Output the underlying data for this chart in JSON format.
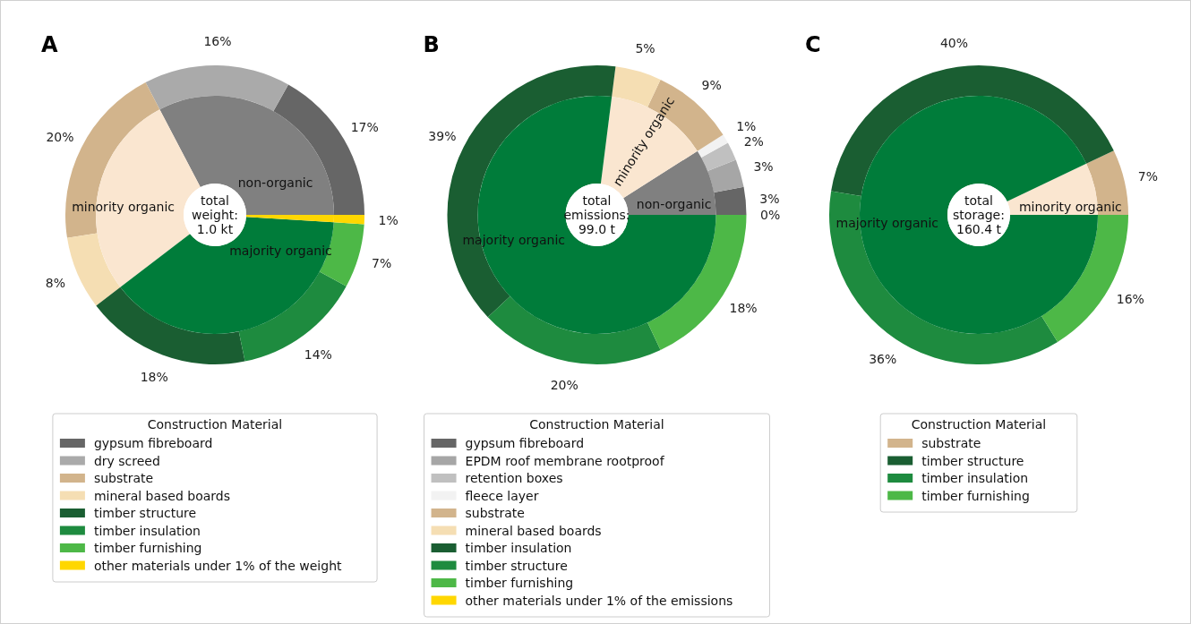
{
  "chart_data": [
    {
      "type": "donut",
      "title": "A",
      "legend_title": "Construction Material",
      "legend": "bottom",
      "categories": [
        "gypsum fibreboard",
        "dry screed",
        "substrate",
        "mineral based boards",
        "timber structure",
        "timber insulation",
        "timber furnishing",
        "other materials under 1% of the weight"
      ],
      "values": [
        17,
        16,
        20,
        8,
        18,
        14,
        7,
        1
      ],
      "value_labels": [
        "17%",
        "16%",
        "20%",
        "8%",
        "18%",
        "14%",
        "7%",
        "1%"
      ],
      "colors": [
        "#666666",
        "#aaaaaa",
        "#d2b48c",
        "#f5deb3",
        "#1a5e32",
        "#1e8b3f",
        "#4db847",
        "#ffd700"
      ]
    },
    {
      "type": "donut",
      "annotations": [
        "total\nweight:\n1.0 kt"
      ],
      "categories": [
        "non-organic",
        "minority organic",
        "majority organic",
        null
      ],
      "values": [
        33,
        28,
        39,
        1
      ],
      "colors": [
        "#808080",
        "#fae6d0",
        "#007c3a",
        "#ffd700"
      ]
    },
    {
      "type": "donut",
      "title": "B",
      "legend_title": "Construction Material",
      "legend": "bottom",
      "categories": [
        "gypsum fibreboard",
        "EPDM roof membrane rootproof",
        "retention boxes",
        "fleece layer",
        "substrate",
        "mineral based boards",
        "timber insulation",
        "timber structure",
        "timber furnishing",
        "other materials under 1% of the emissions"
      ],
      "values": [
        3,
        3,
        2,
        1,
        9,
        5,
        39,
        20,
        18,
        0
      ],
      "value_labels": [
        "3%",
        "3%",
        "2%",
        "1%",
        "9%",
        "5%",
        "39%",
        "20%",
        "18%",
        "0%"
      ],
      "colors": [
        "#666666",
        "#a6a6a6",
        "#c0c0c0",
        "#f2f2f2",
        "#d2b48c",
        "#f5deb3",
        "#1a5e32",
        "#1e8b3f",
        "#4db847",
        "#ffd700"
      ]
    },
    {
      "type": "donut",
      "annotations": [
        "total\nemissions:\n99.0 t"
      ],
      "categories": [
        "non-organic",
        "minority organic",
        "majority organic"
      ],
      "values": [
        9,
        14,
        77
      ],
      "colors": [
        "#808080",
        "#fae6d0",
        "#007c3a"
      ]
    },
    {
      "type": "donut",
      "title": "C",
      "legend_title": "Construction Material",
      "legend": "bottom",
      "categories": [
        "substrate",
        "timber structure",
        "timber insulation",
        "timber furnishing"
      ],
      "values": [
        7,
        40,
        36,
        16
      ],
      "value_labels": [
        "7%",
        "40%",
        "36%",
        "16%"
      ],
      "colors": [
        "#d2b48c",
        "#1a5e32",
        "#1e8b3f",
        "#4db847"
      ]
    },
    {
      "type": "donut",
      "annotations": [
        "total\nstorage:\n160.4 t"
      ],
      "categories": [
        "minority organic",
        "majority organic"
      ],
      "values": [
        7,
        92
      ],
      "colors": [
        "#fae6d0",
        "#007c3a"
      ]
    }
  ]
}
